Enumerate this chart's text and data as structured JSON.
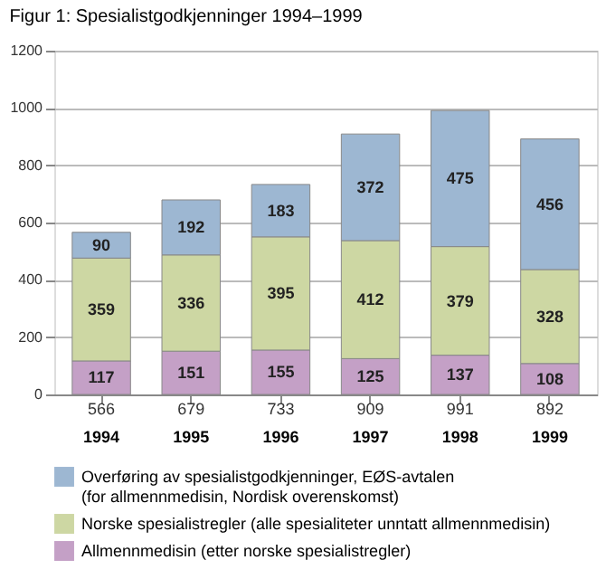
{
  "chart_data": {
    "type": "bar",
    "title": "Figur 1: Spesialistgodkjenninger 1994–1999",
    "categories": [
      "1994",
      "1995",
      "1996",
      "1997",
      "1998",
      "1999"
    ],
    "stacked": true,
    "data_labels": true,
    "grid": "y",
    "legend": "bottom",
    "ylim": [
      0,
      1200
    ],
    "yticks": [
      0,
      200,
      400,
      600,
      800,
      1000,
      1200
    ],
    "totals": [
      "566",
      "679",
      "733",
      "909",
      "991",
      "892"
    ],
    "series": [
      {
        "name": "Allmennmedisin (etter norske spesialistregler)",
        "color": "#c4a0c6",
        "values": [
          117,
          151,
          155,
          125,
          137,
          108
        ]
      },
      {
        "name": "Norske spesialistregler (alle spesialiteter unntatt allmennmedisin)",
        "color": "#cdd7a3",
        "values": [
          359,
          336,
          395,
          412,
          379,
          328
        ]
      },
      {
        "name": "Overføring av spesialistgodkjenninger, EØS-avtalen\n(for allmennmedisin, Nordisk overenskomst)",
        "color": "#9db7d2",
        "values": [
          90,
          192,
          183,
          372,
          475,
          456
        ]
      }
    ]
  }
}
